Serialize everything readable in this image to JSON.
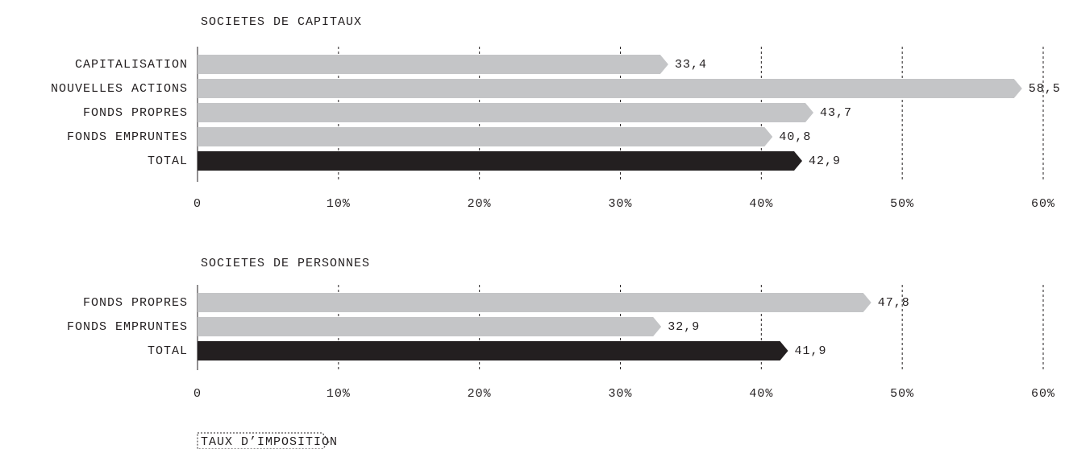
{
  "chart_data": [
    {
      "type": "bar",
      "title": "SOCIETES DE CAPITAUX",
      "categories": [
        "CAPITALISATION",
        "NOUVELLES ACTIONS",
        "FONDS PROPRES",
        "FONDS EMPRUNTES",
        "TOTAL"
      ],
      "values": [
        33.4,
        58.5,
        43.7,
        40.8,
        42.9
      ],
      "value_labels": [
        "33,4",
        "58,5",
        "43,7",
        "40,8",
        "42,9"
      ],
      "colors": [
        "#c4c5c7",
        "#c4c5c7",
        "#c4c5c7",
        "#c4c5c7",
        "#231f20"
      ],
      "xlim": [
        0,
        60
      ],
      "xticks": [
        0,
        {
          "value": 10,
          "label": "10%"
        },
        {
          "value": 20,
          "label": "20%"
        },
        {
          "value": 30,
          "label": "30%"
        },
        {
          "value": 40,
          "label": "40%"
        },
        {
          "value": 50,
          "label": "50%"
        },
        {
          "value": 60,
          "label": "60%"
        }
      ],
      "grid": true
    },
    {
      "type": "bar",
      "title": "SOCIETES DE PERSONNES",
      "categories": [
        "FONDS PROPRES",
        "FONDS EMPRUNTES",
        "TOTAL"
      ],
      "values": [
        47.8,
        32.9,
        41.9
      ],
      "value_labels": [
        "47,8",
        "32,9",
        "41,9"
      ],
      "colors": [
        "#c4c5c7",
        "#c4c5c7",
        "#231f20"
      ],
      "xlim": [
        0,
        60
      ],
      "xticks": [
        0,
        {
          "value": 10,
          "label": "10%"
        },
        {
          "value": 20,
          "label": "20%"
        },
        {
          "value": 30,
          "label": "30%"
        },
        {
          "value": 40,
          "label": "40%"
        },
        {
          "value": 50,
          "label": "50%"
        },
        {
          "value": 60,
          "label": "60%"
        }
      ],
      "grid": true
    }
  ],
  "footer": "TAUX D’IMPOSITION"
}
